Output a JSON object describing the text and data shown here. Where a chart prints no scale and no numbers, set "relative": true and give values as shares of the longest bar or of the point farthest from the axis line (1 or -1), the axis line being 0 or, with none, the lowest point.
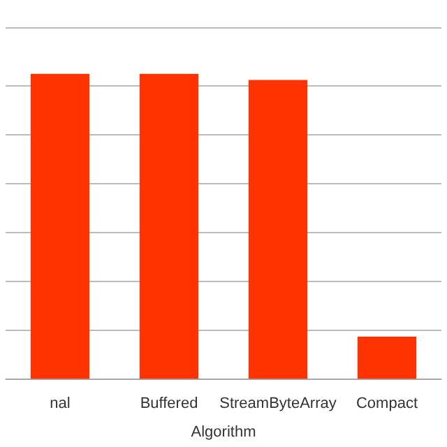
{
  "chart_data": {
    "type": "bar",
    "xlabel": "Algorithm",
    "categories": [
      "nal",
      "Buffered",
      "StreamByteArray",
      "Compact"
    ],
    "values": [
      1,
      1,
      0.98,
      0.14
    ],
    "color": "#ff3300",
    "relative": true,
    "grid": "y",
    "legend": false
  }
}
